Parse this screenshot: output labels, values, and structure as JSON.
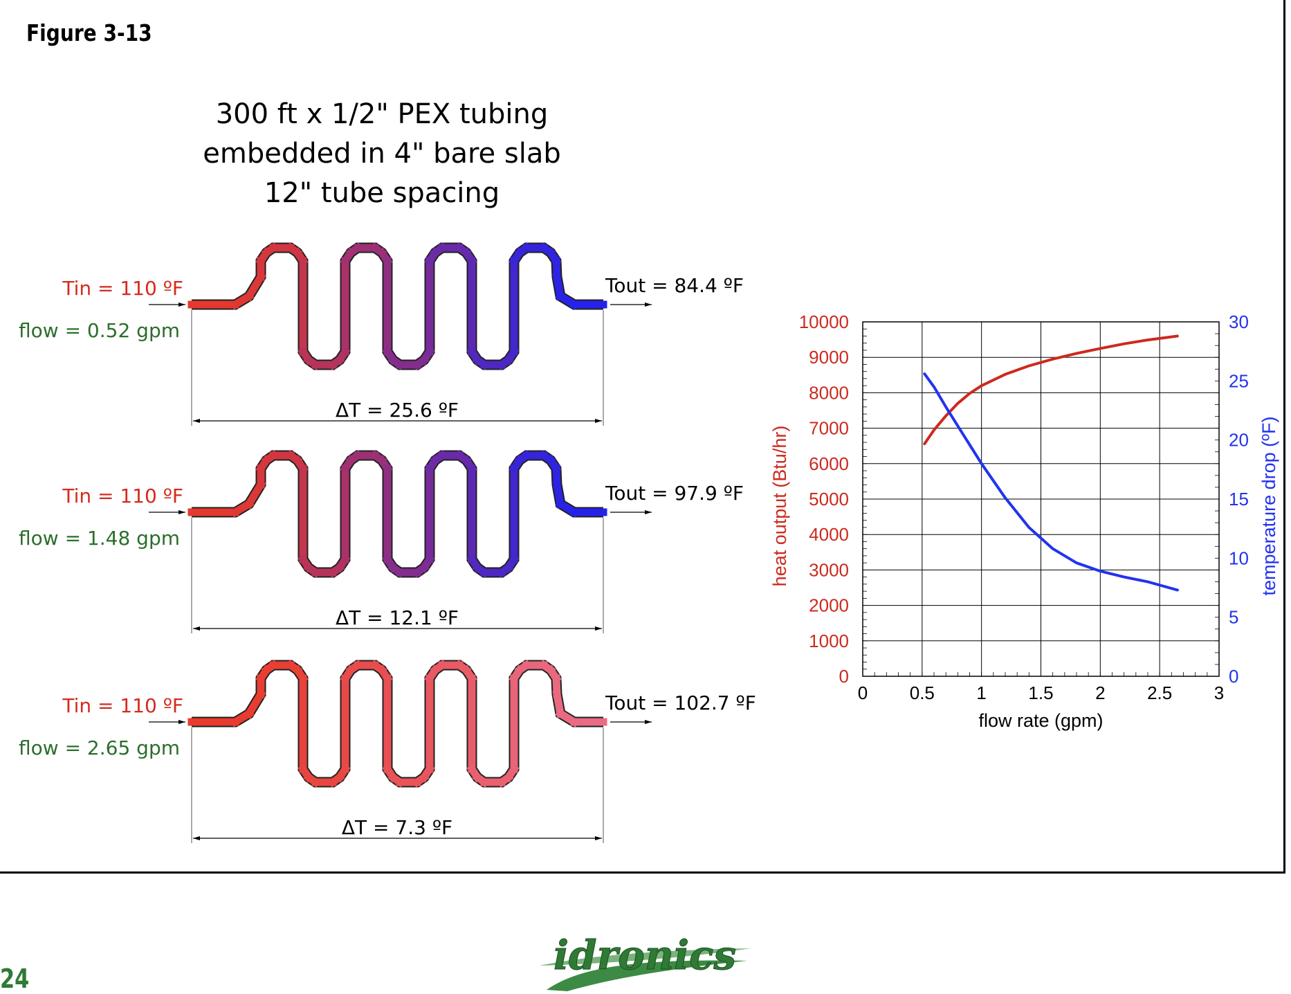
{
  "figure_label": "Figure 3-13",
  "title_lines": [
    "300 ft x 1/2\" PEX tubing",
    "embedded in 4\" bare slab",
    "12\" tube spacing"
  ],
  "circuits": [
    {
      "tin": "Tin = 110 ºF",
      "flow": "flow = 0.52 gpm",
      "tout": "Tout = 84.4 ºF",
      "dt": "ΔT = 25.6 ºF",
      "start_color": "#e8392b",
      "end_color": "#2222ee"
    },
    {
      "tin": "Tin = 110 ºF",
      "flow": "flow = 1.48 gpm",
      "tout": "Tout = 97.9 ºF",
      "dt": "ΔT = 12.1 ºF",
      "start_color": "#e8392b",
      "end_color": "#2222ee"
    },
    {
      "tin": "Tin = 110 ºF",
      "flow": "flow = 2.65 gpm",
      "tout": "Tout = 102.7 ºF",
      "dt": "ΔT = 7.3 ºF",
      "start_color": "#e8392b",
      "end_color": "#e96c85"
    }
  ],
  "colors": {
    "tin": "#d42a1e",
    "flow": "#2b6e2b",
    "heat_series": "#cc2a1e",
    "temp_series": "#2233ee",
    "page_number": "#2f7a35"
  },
  "chart_data": {
    "type": "line",
    "xlabel": "flow rate (gpm)",
    "ylabel_left": "heat output (Btu/hr)",
    "ylabel_right": "temperature drop (ºF)",
    "x_ticks": [
      "0",
      "0.5",
      "1",
      "1.5",
      "2",
      "2.5",
      "3"
    ],
    "y_left_ticks": [
      "0",
      "1000",
      "2000",
      "3000",
      "4000",
      "5000",
      "6000",
      "7000",
      "8000",
      "9000",
      "10000"
    ],
    "y_right_ticks": [
      "0",
      "5",
      "10",
      "15",
      "20",
      "25",
      "30"
    ],
    "xlim": [
      0,
      3
    ],
    "ylim_left": [
      0,
      10000
    ],
    "ylim_right": [
      0,
      30
    ],
    "grid": true,
    "series": [
      {
        "axis": "left",
        "color": "#cc2a1e",
        "x": [
          0.52,
          0.6,
          0.7,
          0.8,
          0.9,
          1.0,
          1.2,
          1.4,
          1.6,
          1.8,
          2.0,
          2.2,
          2.4,
          2.65
        ],
        "y": [
          6560,
          6950,
          7350,
          7700,
          7980,
          8200,
          8520,
          8760,
          8950,
          9110,
          9250,
          9380,
          9490,
          9600
        ]
      },
      {
        "axis": "right",
        "color": "#2233ee",
        "x": [
          0.52,
          0.6,
          0.7,
          0.8,
          0.9,
          1.0,
          1.2,
          1.4,
          1.6,
          1.8,
          2.0,
          2.2,
          2.4,
          2.65
        ],
        "y": [
          25.6,
          24.5,
          22.8,
          21.2,
          19.6,
          18.0,
          15.1,
          12.6,
          10.8,
          9.6,
          8.9,
          8.4,
          8.0,
          7.3
        ]
      }
    ]
  },
  "logo_text": "idronics",
  "page_number": "24"
}
